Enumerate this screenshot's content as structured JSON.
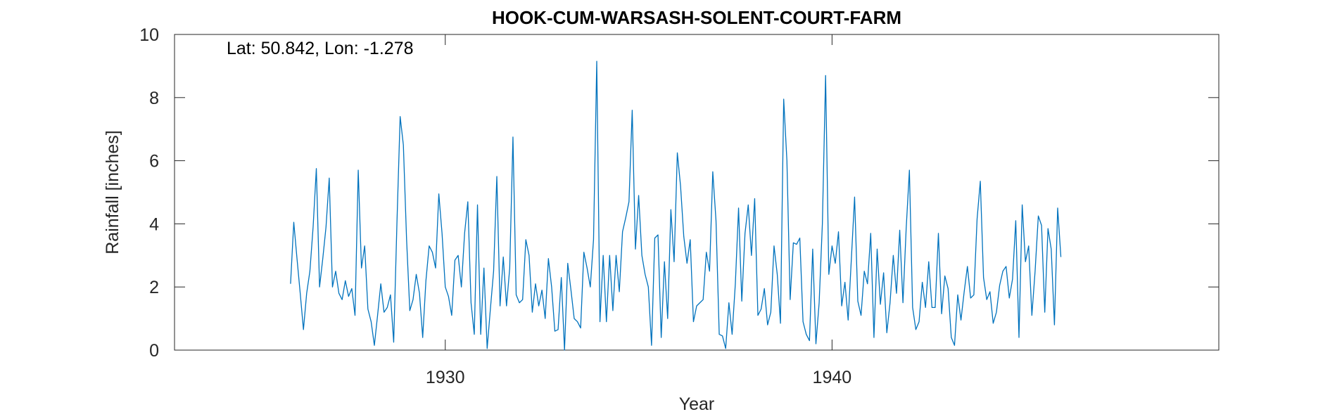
{
  "chart_data": {
    "type": "line",
    "title": "HOOK-CUM-WARSASH-SOLENT-COURT-FARM",
    "annotation": "Lat: 50.842, Lon: -1.278",
    "xlabel": "Year",
    "ylabel": "Rainfall [inches]",
    "xlim": [
      1923,
      1950
    ],
    "ylim": [
      0,
      10
    ],
    "xticks": [
      1930,
      1940
    ],
    "yticks": [
      0,
      2,
      4,
      6,
      8,
      10
    ],
    "grid": false,
    "line_color": "#0072BD",
    "series": [
      {
        "x_start": 1926.0,
        "x_step": 0.08333333,
        "values": [
          2.1,
          4.05,
          2.9,
          1.8,
          0.65,
          1.8,
          2.5,
          3.9,
          5.75,
          2.0,
          2.9,
          3.9,
          5.45,
          2.0,
          2.5,
          1.8,
          1.6,
          2.2,
          1.7,
          1.95,
          1.1,
          5.7,
          2.6,
          3.3,
          1.3,
          0.9,
          0.15,
          1.1,
          2.1,
          1.2,
          1.35,
          1.75,
          0.25,
          4.0,
          7.4,
          6.5,
          3.5,
          1.25,
          1.6,
          2.4,
          1.8,
          0.4,
          2.2,
          3.3,
          3.1,
          2.6,
          4.95,
          3.7,
          2.0,
          1.7,
          1.1,
          2.85,
          3.0,
          2.0,
          3.7,
          4.7,
          1.5,
          0.5,
          4.6,
          0.5,
          2.6,
          0.05,
          1.3,
          2.5,
          5.5,
          1.4,
          2.95,
          1.4,
          2.6,
          6.75,
          1.75,
          1.5,
          1.6,
          3.5,
          3.0,
          1.2,
          2.1,
          1.4,
          1.9,
          1.0,
          2.9,
          2.0,
          0.6,
          0.65,
          2.3,
          0.0,
          2.75,
          1.9,
          1.0,
          0.9,
          0.7,
          3.1,
          2.6,
          2.0,
          3.5,
          9.15,
          0.9,
          3.0,
          0.9,
          3.0,
          1.25,
          3.0,
          1.85,
          3.75,
          4.2,
          4.7,
          7.6,
          3.2,
          4.9,
          3.0,
          2.4,
          2.0,
          0.15,
          3.55,
          3.65,
          0.4,
          2.8,
          1.0,
          4.45,
          2.8,
          6.25,
          5.2,
          3.6,
          2.75,
          3.5,
          0.9,
          1.4,
          1.5,
          1.6,
          3.1,
          2.5,
          5.65,
          4.1,
          0.5,
          0.45,
          0.05,
          1.5,
          0.5,
          2.1,
          4.5,
          1.55,
          3.7,
          4.6,
          3.0,
          4.8,
          1.1,
          1.3,
          1.95,
          0.8,
          1.2,
          3.3,
          2.4,
          0.85,
          7.95,
          6.0,
          1.6,
          3.4,
          3.35,
          3.55,
          0.9,
          0.5,
          0.3,
          3.2,
          0.2,
          1.5,
          4.0,
          8.7,
          2.4,
          3.3,
          2.75,
          3.75,
          1.4,
          2.15,
          0.95,
          2.9,
          4.85,
          1.55,
          1.1,
          2.5,
          2.1,
          3.7,
          0.4,
          3.2,
          1.45,
          2.45,
          0.55,
          1.5,
          3.0,
          1.8,
          3.8,
          1.5,
          3.85,
          5.7,
          1.35,
          0.65,
          0.9,
          2.15,
          1.35,
          2.8,
          1.35,
          1.35,
          3.7,
          1.15,
          2.35,
          1.95,
          0.4,
          0.15,
          1.75,
          0.95,
          1.85,
          2.65,
          1.65,
          1.75,
          4.15,
          5.35,
          2.3,
          1.6,
          1.85,
          0.85,
          1.2,
          2.05,
          2.5,
          2.65,
          1.65,
          2.25,
          4.1,
          0.4,
          4.6,
          2.8,
          3.3,
          1.1,
          2.5,
          4.25,
          3.95,
          1.2,
          3.85,
          3.2,
          0.8,
          4.5,
          2.95
        ]
      }
    ]
  }
}
